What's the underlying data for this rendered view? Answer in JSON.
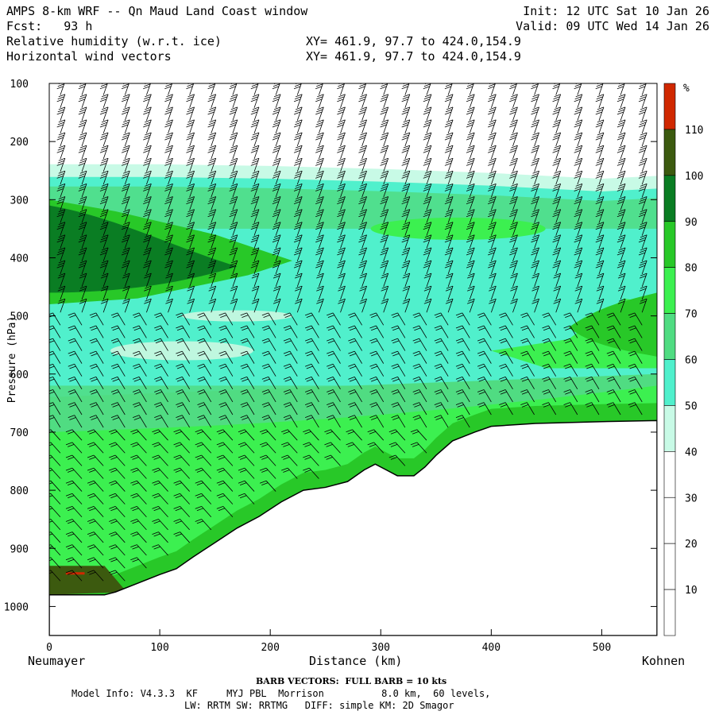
{
  "header": {
    "title": "AMPS 8-km WRF -- Qn Maud Land Coast window",
    "fcst": "Fcst:   93 h",
    "field1": "Relative humidity (w.r.t. ice)",
    "field2": "Horizontal wind vectors",
    "xy1": "XY= 461.9, 97.7 to 424.0,154.9",
    "xy2": "XY= 461.9, 97.7 to 424.0,154.9",
    "init": "Init: 12 UTC Sat 10 Jan 26",
    "valid": "Valid: 09 UTC Wed 14 Jan 26"
  },
  "chart_data": {
    "type": "heatmap",
    "title": "Relative humidity (w.r.t. ice) and horizontal wind vectors, cross-section",
    "xlabel": "Distance (km)",
    "ylabel": "Pressure (hPa)",
    "xlim": [
      0,
      550
    ],
    "ylim": [
      1050,
      100
    ],
    "x_ticks": [
      0,
      100,
      200,
      300,
      400,
      500
    ],
    "y_ticks": [
      100,
      200,
      300,
      400,
      500,
      600,
      700,
      800,
      900,
      1000
    ],
    "left_endpoint": "Neumayer",
    "right_endpoint": "Kohnen",
    "colorbar": {
      "unit": "%",
      "levels": [
        10,
        20,
        30,
        40,
        50,
        60,
        70,
        80,
        90,
        100,
        110
      ],
      "colors": [
        "#ffffff",
        "#ffffff",
        "#ffffff",
        "#c8fae6",
        "#50f0cc",
        "#50dc82",
        "#3cf050",
        "#28c828",
        "#0a7d23",
        "#3c5a0f",
        "#d02800"
      ]
    },
    "terrain_km_hpa": [
      [
        0,
        980
      ],
      [
        50,
        980
      ],
      [
        60,
        975
      ],
      [
        80,
        960
      ],
      [
        100,
        945
      ],
      [
        115,
        935
      ],
      [
        130,
        915
      ],
      [
        150,
        890
      ],
      [
        170,
        865
      ],
      [
        190,
        845
      ],
      [
        210,
        820
      ],
      [
        230,
        800
      ],
      [
        250,
        795
      ],
      [
        270,
        785
      ],
      [
        285,
        765
      ],
      [
        295,
        755
      ],
      [
        305,
        765
      ],
      [
        315,
        775
      ],
      [
        330,
        775
      ],
      [
        340,
        760
      ],
      [
        350,
        740
      ],
      [
        365,
        715
      ],
      [
        385,
        700
      ],
      [
        400,
        690
      ],
      [
        440,
        685
      ],
      [
        500,
        682
      ],
      [
        550,
        680
      ]
    ],
    "contours": [
      {
        "level": 40,
        "pts": [
          [
            0,
            250
          ],
          [
            100,
            250
          ],
          [
            200,
            253
          ],
          [
            300,
            258
          ],
          [
            400,
            265
          ],
          [
            500,
            275
          ],
          [
            550,
            270
          ]
        ]
      },
      {
        "level": 90,
        "pts": [
          [
            0,
            300
          ],
          [
            60,
            320
          ],
          [
            150,
            360
          ],
          [
            220,
            405
          ],
          [
            180,
            430
          ],
          [
            80,
            470
          ],
          [
            0,
            480
          ]
        ]
      },
      {
        "level": 80,
        "pts": [
          [
            400,
            560
          ],
          [
            470,
            540
          ],
          [
            520,
            470
          ],
          [
            550,
            480
          ],
          [
            550,
            590
          ],
          [
            450,
            590
          ]
        ]
      }
    ],
    "wind_barbs": "wind barbs at every ~20 km column; full barb = 10 kts"
  },
  "footer": {
    "barb": "BARB VECTORS:  FULL BARB = 10 kts",
    "model_info": "Model Info: V4.3.3  KF     MYJ PBL  Morrison          8.0 km,  60 levels,",
    "model_info2": "LW: RRTM SW: RRTMG   DIFF: simple KM: 2D Smagor"
  }
}
